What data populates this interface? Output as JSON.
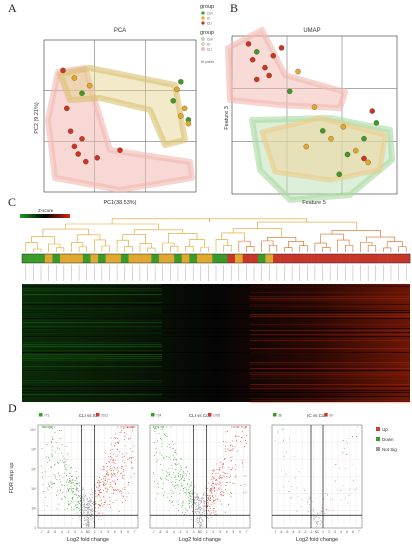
{
  "figure": {
    "panel_labels": [
      "A",
      "B",
      "C",
      "D"
    ]
  },
  "chart_data": [
    {
      "type": "scatter",
      "title": "PCA",
      "xlabel": "PC1(38.53%)",
      "ylabel": "PC2 (9.21%)",
      "points_note": "51 points",
      "legend": {
        "title": "group",
        "entries": [
          "Con",
          "IC",
          "CLI"
        ],
        "colors": [
          "#3a9a2a",
          "#e0a82e",
          "#c8362a"
        ]
      },
      "fill_legend": {
        "title": "group",
        "entries": [
          "Con",
          "IC",
          "CLI"
        ],
        "colors": [
          "#b8dfb4",
          "#f0d6a0",
          "#f2b8b0"
        ]
      },
      "series": [
        {
          "name": "Con",
          "x": [
            -0.5,
            0.8,
            0.7,
            0.9
          ],
          "y": [
            0.3,
            0.45,
            0.2,
            -0.05
          ]
        },
        {
          "name": "IC",
          "x": [
            -0.6,
            -0.4,
            0.75,
            0.85,
            0.9,
            0.8
          ],
          "y": [
            0.5,
            0.4,
            0.35,
            0.1,
            -0.1,
            0.0
          ]
        },
        {
          "name": "CLI",
          "x": [
            -0.75,
            -0.7,
            -0.65,
            -0.5,
            -0.6,
            -0.55,
            -0.45,
            -0.3,
            0.0
          ],
          "y": [
            0.6,
            0.1,
            -0.2,
            -0.3,
            -0.4,
            -0.5,
            -0.6,
            -0.55,
            -0.45
          ]
        }
      ]
    },
    {
      "type": "scatter",
      "title": "UMAP",
      "xlabel": "Feature 5",
      "ylabel": "Feature 3",
      "series": [
        {
          "name": "Con",
          "x": [
            -0.7,
            -0.3,
            0.1,
            0.4,
            0.6,
            0.75,
            0.3
          ],
          "y": [
            0.8,
            0.3,
            -0.2,
            -0.5,
            -0.3,
            -0.1,
            -0.75
          ]
        },
        {
          "name": "IC",
          "x": [
            -0.2,
            0.0,
            0.2,
            0.5,
            0.65,
            -0.1,
            0.35
          ],
          "y": [
            0.55,
            0.1,
            -0.3,
            -0.45,
            -0.6,
            -0.4,
            -0.15
          ]
        },
        {
          "name": "CLI",
          "x": [
            -0.8,
            -0.75,
            -0.6,
            -0.5,
            -0.7,
            -0.4,
            -0.55,
            0.7,
            0.6
          ],
          "y": [
            0.9,
            0.7,
            0.6,
            0.75,
            0.45,
            0.85,
            0.5,
            0.05,
            -0.55
          ]
        }
      ]
    },
    {
      "type": "heatmap",
      "legend": {
        "title": "Z-score"
      },
      "group_colors": [
        "#3a9a2a",
        "#e0a82e",
        "#c8362a"
      ],
      "column_groups": [
        "Con",
        "Con",
        "Con",
        "IC",
        "Con",
        "IC",
        "IC",
        "IC",
        "Con",
        "IC",
        "Con",
        "IC",
        "IC",
        "Con",
        "IC",
        "IC",
        "IC",
        "Con",
        "IC",
        "IC",
        "Con",
        "IC",
        "Con",
        "IC",
        "IC",
        "Con",
        "Con",
        "CLI",
        "IC",
        "CLI",
        "CLI",
        "Con",
        "IC",
        "CLI",
        "CLI",
        "CLI",
        "CLI",
        "CLI",
        "CLI",
        "CLI",
        "CLI",
        "CLI",
        "CLI",
        "CLI",
        "CLI",
        "CLI",
        "CLI",
        "CLI",
        "CLI",
        "CLI",
        "CLI"
      ]
    },
    {
      "type": "scatter",
      "title": "CLI vs IC",
      "xlabel": "Log2 fold change",
      "ylabel": "FDR step up",
      "down_count": "771",
      "up_count": "2012",
      "xlim": [
        -7,
        7
      ]
    },
    {
      "type": "scatter",
      "title": "CLI vs Con",
      "xlabel": "Log2 fold change",
      "down_count": "724",
      "up_count": "1765",
      "xlim": [
        -7,
        7
      ]
    },
    {
      "type": "scatter",
      "title": "IC vs Con",
      "xlabel": "Log2 fold change",
      "down_count": "38",
      "up_count": "60",
      "xlim": [
        -7,
        7
      ]
    }
  ],
  "volcano_legend": {
    "entries": [
      "Up",
      "Down",
      "Not Sig"
    ],
    "colors": [
      "#d43a2a",
      "#3a9a2a",
      "#9a9a9a"
    ]
  },
  "volcano_ticks": [
    "-7",
    "-6",
    "-5",
    "-4",
    "-3",
    "-2",
    "-1",
    "NC",
    "1",
    "2",
    "3",
    "4",
    "5",
    "6",
    "7"
  ],
  "volcano_yticks": [
    "1",
    "10²",
    "10⁴",
    "10⁶",
    "10⁸",
    "10¹⁰"
  ]
}
